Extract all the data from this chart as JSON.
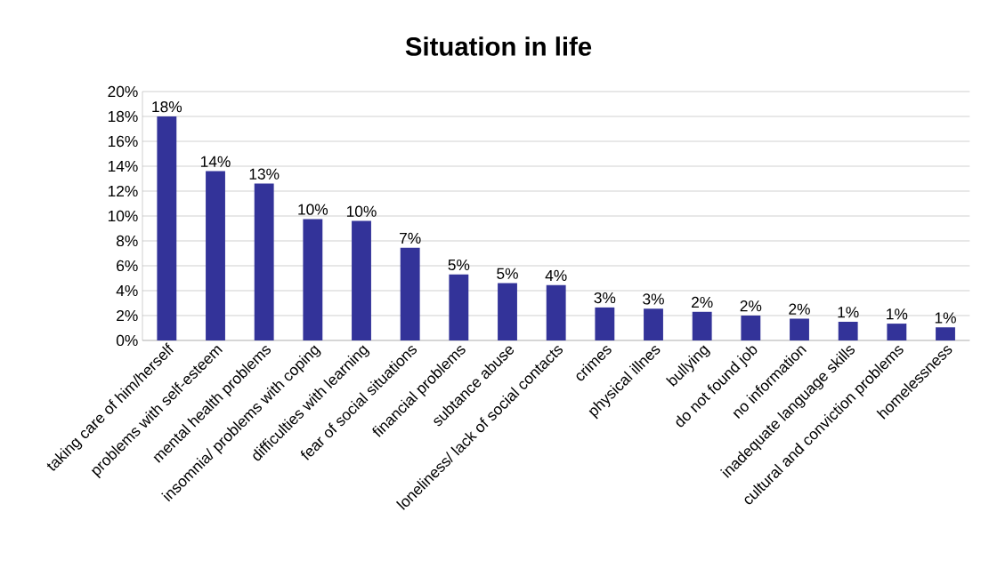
{
  "chart_data": {
    "type": "bar",
    "title": "Situation in life",
    "categories": [
      "taking care of him/herself",
      "problems with self-esteem",
      "mental health problems",
      "insomnia/ problems with coping",
      "difficulties with learning",
      "fear of social situations",
      "financial problems",
      "subtance abuse",
      "loneliness/ lack of social contacts",
      "crimes",
      "physical illnes",
      "bullying",
      "do not found job",
      "no information",
      "inadequate language skills",
      "cultural and conviction problems",
      "homelessness"
    ],
    "values": [
      18,
      13.6,
      12.6,
      9.75,
      9.6,
      7.45,
      5.3,
      4.6,
      4.45,
      2.65,
      2.55,
      2.3,
      2.0,
      1.75,
      1.5,
      1.35,
      1.05
    ],
    "value_labels": [
      "18%",
      "14%",
      "13%",
      "10%",
      "10%",
      "7%",
      "5%",
      "5%",
      "4%",
      "3%",
      "3%",
      "2%",
      "2%",
      "2%",
      "1%",
      "1%",
      "1%"
    ],
    "color": "#333399",
    "ylim": [
      0,
      20
    ],
    "yticks": [
      {
        "value": 0,
        "label": "0%"
      },
      {
        "value": 2,
        "label": "2%"
      },
      {
        "value": 4,
        "label": "4%"
      },
      {
        "value": 6,
        "label": "6%"
      },
      {
        "value": 8,
        "label": "8%"
      },
      {
        "value": 10,
        "label": "10%"
      },
      {
        "value": 12,
        "label": "12%"
      },
      {
        "value": 14,
        "label": "14%"
      },
      {
        "value": 16,
        "label": "16%"
      },
      {
        "value": 18,
        "label": "18%"
      },
      {
        "value": 20,
        "label": "20%"
      }
    ],
    "grid": "y"
  }
}
